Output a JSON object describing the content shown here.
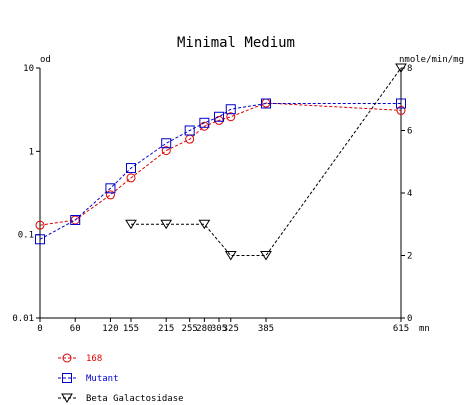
{
  "chart_data": {
    "type": "line",
    "title": "Minimal Medium",
    "left_axis_unit": "od",
    "right_axis_unit": "nmole/min/mg",
    "x_unit": "mn",
    "x_range": [
      0,
      615
    ],
    "left_range": [
      0.01,
      10
    ],
    "left_scale": "log",
    "right_range": [
      0,
      8
    ],
    "grid": false,
    "legend_position": "bottom-left",
    "x_ticks": [
      0,
      60,
      120,
      155,
      215,
      255,
      280,
      305,
      325,
      385,
      615
    ],
    "x_tick_labels": [
      "0",
      "60",
      "120",
      "155",
      "215",
      "255",
      "280",
      "305",
      "325",
      "385",
      "615"
    ],
    "left_ticks": [
      0.01,
      0.1,
      1,
      10
    ],
    "left_tick_labels": [
      "0.01",
      "0.1",
      "1",
      "10"
    ],
    "right_ticks": [
      0,
      2,
      4,
      6,
      8
    ],
    "right_tick_labels": [
      "0",
      "2",
      "4",
      "6",
      "8"
    ],
    "series": [
      {
        "name": "168",
        "axis": "left",
        "marker": "circle",
        "color": "#dd0000",
        "x": [
          0,
          60,
          120,
          155,
          215,
          255,
          280,
          305,
          325,
          385,
          615
        ],
        "y": [
          0.13,
          0.15,
          0.3,
          0.48,
          1.02,
          1.4,
          2.0,
          2.35,
          2.6,
          3.8,
          3.1
        ]
      },
      {
        "name": "Mutant",
        "axis": "left",
        "marker": "square",
        "color": "#0000cc",
        "x": [
          0,
          60,
          120,
          155,
          215,
          255,
          280,
          305,
          325,
          385,
          615
        ],
        "y": [
          0.088,
          0.15,
          0.36,
          0.63,
          1.25,
          1.78,
          2.2,
          2.6,
          3.2,
          3.75,
          3.75
        ]
      },
      {
        "name": "Beta Galactosidase",
        "axis": "right",
        "marker": "triangle-down",
        "color": "#000000",
        "x": [
          155,
          215,
          280,
          325,
          385,
          615
        ],
        "y": [
          3.0,
          3.0,
          3.0,
          2.0,
          2.0,
          8.0
        ]
      }
    ]
  }
}
